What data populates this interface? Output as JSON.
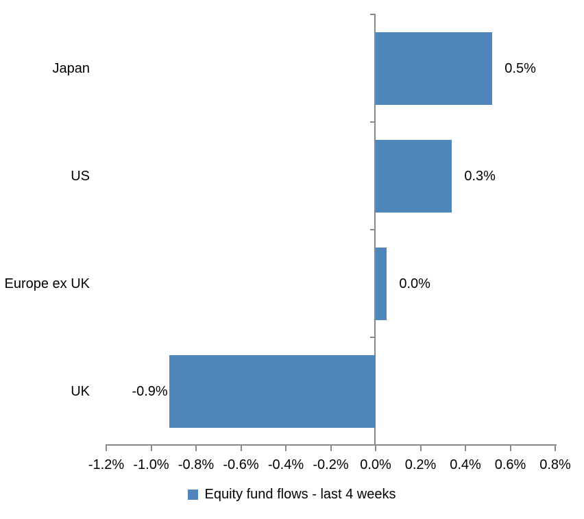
{
  "chart_data": {
    "type": "bar",
    "orientation": "horizontal",
    "categories": [
      "Japan",
      "US",
      "Europe ex UK",
      "UK"
    ],
    "series": [
      {
        "name": "Equity fund flows - last 4 weeks",
        "values": [
          0.52,
          0.34,
          0.05,
          -0.92
        ],
        "data_labels": [
          "0.5%",
          "0.3%",
          "0.0%",
          "-0.9%"
        ],
        "color": "#4F86BC"
      }
    ],
    "xlim": [
      -1.2,
      0.8
    ],
    "x_ticks": [
      {
        "value": -1.2,
        "label": "-1.2%"
      },
      {
        "value": -1.0,
        "label": "-1.0%"
      },
      {
        "value": -0.8,
        "label": "-0.8%"
      },
      {
        "value": -0.6,
        "label": "-0.6%"
      },
      {
        "value": -0.4,
        "label": "-0.4%"
      },
      {
        "value": -0.2,
        "label": "-0.2%"
      },
      {
        "value": 0.0,
        "label": "0.0%"
      },
      {
        "value": 0.2,
        "label": "0.2%"
      },
      {
        "value": 0.4,
        "label": "0.4%"
      },
      {
        "value": 0.6,
        "label": "0.6%"
      },
      {
        "value": 0.8,
        "label": "0.8%"
      }
    ],
    "grid": false,
    "legend": {
      "position": "bottom",
      "label": "Equity fund flows - last 4 weeks",
      "marker_color": "#4F86BC"
    },
    "colors": {
      "bar": "#4F86BC",
      "axis": "#898989",
      "text": "#000000",
      "background": "#FFFFFF"
    }
  }
}
